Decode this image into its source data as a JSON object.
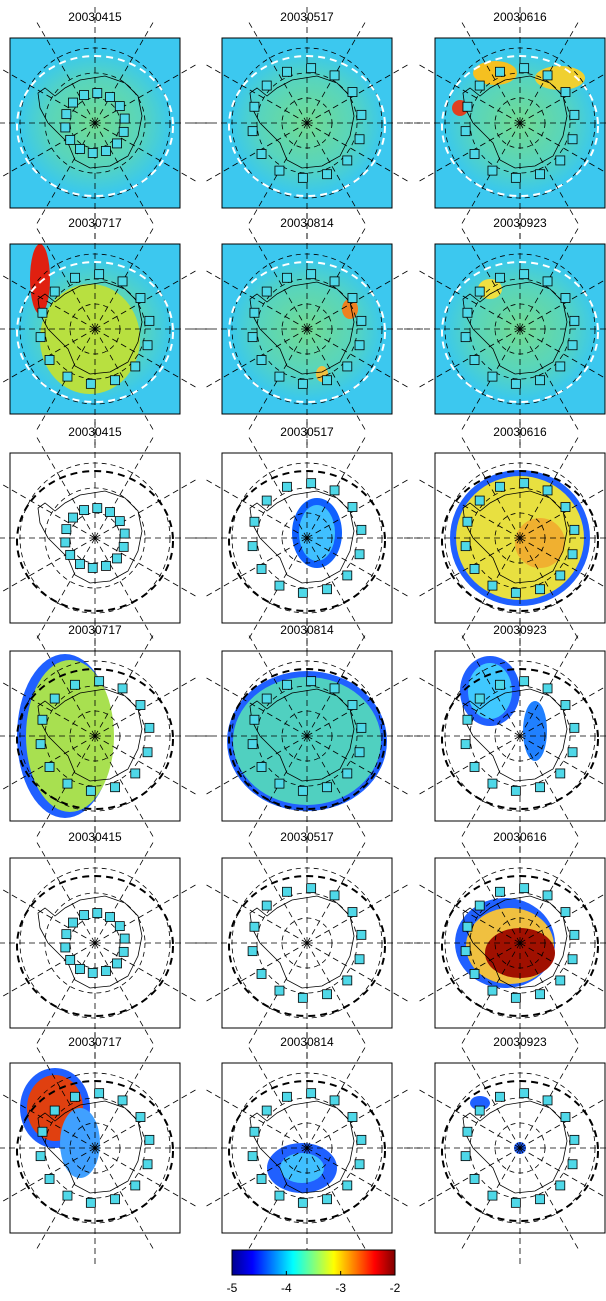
{
  "panels": [
    {
      "title": "20030415"
    },
    {
      "title": "20030517"
    },
    {
      "title": "20030616"
    },
    {
      "title": "20030717"
    },
    {
      "title": "20030814"
    },
    {
      "title": "20030923"
    },
    {
      "title": "20030415"
    },
    {
      "title": "20030517"
    },
    {
      "title": "20030616"
    },
    {
      "title": "20030717"
    },
    {
      "title": "20030814"
    },
    {
      "title": "20030923"
    },
    {
      "title": "20030415"
    },
    {
      "title": "20030517"
    },
    {
      "title": "20030616"
    },
    {
      "title": "20030717"
    },
    {
      "title": "20030814"
    },
    {
      "title": "20030923"
    }
  ],
  "colorbar": {
    "lim": [
      -5,
      -2
    ],
    "ticks": [
      -5,
      -4,
      -3,
      -2
    ]
  }
}
